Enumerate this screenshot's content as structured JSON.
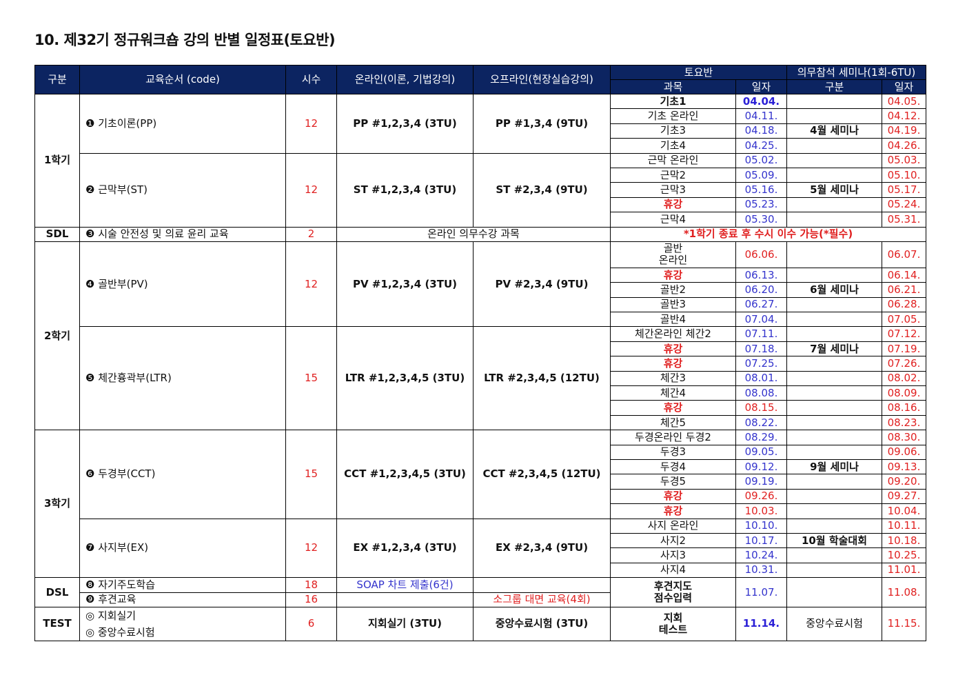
{
  "title": "10. 제32기 정규워크숍 강의 반별 일정표(토요반)",
  "header": {
    "gubun": "구분",
    "order": "교육순서 (code)",
    "hours": "시수",
    "online": "온라인(이론, 기법강의)",
    "offline": "오프라인(현장실습강의)",
    "saturday": "토요반",
    "subject": "과목",
    "date": "일자",
    "seminar": "의무참석 세미나(1회-6TU)",
    "seminar_type": "구분",
    "seminar_date": "일자"
  },
  "colors": {
    "header_bg": "#0c2461",
    "date_blue": "#3333cc",
    "red": "#e02020"
  },
  "sections": [
    {
      "label": "1학기",
      "courses": [
        {
          "name": "❶ 기초이론(PP)",
          "hours": "12",
          "online": "PP #1,2,3,4 (3TU)",
          "offline": "PP #1,3,4 (9TU)",
          "sessions": [
            {
              "subject": "기초1",
              "bold": true,
              "date": "04.04.",
              "date_color": "bold-blue",
              "seminar": "",
              "seminar_date": "04.05."
            },
            {
              "subject": "기초 온라인",
              "date": "04.11.",
              "seminar": "",
              "seminar_date": "04.12."
            },
            {
              "subject": "기초3",
              "date": "04.18.",
              "seminar": "4월 세미나",
              "seminar_date": "04.19."
            },
            {
              "subject": "기초4",
              "date": "04.25.",
              "seminar": "",
              "seminar_date": "04.26."
            }
          ]
        },
        {
          "name": "❷ 근막부(ST)",
          "hours": "12",
          "online": "ST #1,2,3,4 (3TU)",
          "offline": "ST #2,3,4 (9TU)",
          "sessions": [
            {
              "subject": "근막 온라인",
              "date": "05.02.",
              "seminar": "",
              "seminar_date": "05.03."
            },
            {
              "subject": "근막2",
              "date": "05.09.",
              "seminar": "",
              "seminar_date": "05.10."
            },
            {
              "subject": "근막3",
              "date": "05.16.",
              "seminar": "5월 세미나",
              "seminar_date": "05.17."
            },
            {
              "subject": "휴강",
              "holiday": true,
              "date": "05.23.",
              "seminar": "",
              "seminar_date": "05.24."
            },
            {
              "subject": "근막4",
              "date": "05.30.",
              "seminar": "",
              "seminar_date": "05.31."
            }
          ]
        }
      ]
    },
    {
      "special": "sdl",
      "label": "SDL",
      "name": "❸ 시술 안전성 및 의료 윤리 교육",
      "hours": "2",
      "online": "온라인 의무수강 과목",
      "note": "*1학기 종료 후 수시 이수 가능(*필수)"
    },
    {
      "label": "2학기",
      "courses": [
        {
          "name": "❹ 골반부(PV)",
          "hours": "12",
          "online": "PV #1,2,3,4 (3TU)",
          "offline": "PV #2,3,4 (9TU)",
          "sessions": [
            {
              "subject": "골반\n온라인",
              "date": "06.06.",
              "date_color": "red",
              "seminar": "",
              "seminar_date": "06.07."
            },
            {
              "subject": "휴강",
              "holiday": true,
              "date": "06.13.",
              "seminar": "",
              "seminar_date": "06.14."
            },
            {
              "subject": "골반2",
              "date": "06.20.",
              "seminar": "6월 세미나",
              "seminar_date": "06.21."
            },
            {
              "subject": "골반3",
              "date": "06.27.",
              "seminar": "",
              "seminar_date": "06.28."
            },
            {
              "subject": "골반4",
              "date": "07.04.",
              "seminar": "",
              "seminar_date": "07.05."
            }
          ]
        },
        {
          "name": "❺ 체간흉곽부(LTR)",
          "hours": "15",
          "online": "LTR #1,2,3,4,5 (3TU)",
          "offline": "LTR #2,3,4,5 (12TU)",
          "sessions": [
            {
              "subject": "체간온라인 체간2",
              "date": "07.11.",
              "seminar": "",
              "seminar_date": "07.12."
            },
            {
              "subject": "휴강",
              "holiday": true,
              "date": "07.18.",
              "seminar": "7월 세미나",
              "seminar_date": "07.19."
            },
            {
              "subject": "휴강",
              "holiday": true,
              "date": "07.25.",
              "seminar": "",
              "seminar_date": "07.26."
            },
            {
              "subject": "체간3",
              "date": "08.01.",
              "seminar": "",
              "seminar_date": "08.02."
            },
            {
              "subject": "체간4",
              "date": "08.08.",
              "seminar": "",
              "seminar_date": "08.09."
            },
            {
              "subject": "휴강",
              "holiday": true,
              "date": "08.15.",
              "date_color": "red",
              "seminar": "",
              "seminar_date": "08.16."
            },
            {
              "subject": "체간5",
              "date": "08.22.",
              "seminar": "",
              "seminar_date": "08.23."
            }
          ]
        }
      ]
    },
    {
      "label": "3학기",
      "courses": [
        {
          "name": "❻ 두경부(CCT)",
          "hours": "15",
          "online": "CCT #1,2,3,4,5 (3TU)",
          "offline": "CCT #2,3,4,5 (12TU)",
          "sessions": [
            {
              "subject": "두경온라인 두경2",
              "date": "08.29.",
              "seminar": "",
              "seminar_date": "08.30."
            },
            {
              "subject": "두경3",
              "date": "09.05.",
              "seminar": "",
              "seminar_date": "09.06."
            },
            {
              "subject": "두경4",
              "date": "09.12.",
              "seminar": "9월 세미나",
              "seminar_date": "09.13."
            },
            {
              "subject": "두경5",
              "date": "09.19.",
              "seminar": "",
              "seminar_date": "09.20."
            },
            {
              "subject": "휴강",
              "holiday": true,
              "date": "09.26.",
              "date_color": "red",
              "seminar": "",
              "seminar_date": "09.27."
            },
            {
              "subject": "휴강",
              "holiday": true,
              "date": "10.03.",
              "date_color": "red",
              "seminar": "",
              "seminar_date": "10.04."
            }
          ]
        },
        {
          "name": "❼ 사지부(EX)",
          "hours": "12",
          "online": "EX #1,2,3,4 (3TU)",
          "offline": "EX #2,3,4 (9TU)",
          "sessions": [
            {
              "subject": "사지 온라인",
              "date": "10.10.",
              "seminar": "",
              "seminar_date": "10.11."
            },
            {
              "subject": "사지2",
              "date": "10.17.",
              "seminar": "10월 학술대회",
              "seminar_date": "10.18."
            },
            {
              "subject": "사지3",
              "date": "10.24.",
              "seminar": "",
              "seminar_date": "10.25."
            },
            {
              "subject": "사지4",
              "date": "10.31.",
              "seminar": "",
              "seminar_date": "11.01."
            }
          ]
        }
      ]
    },
    {
      "special": "dsl",
      "label": "DSL",
      "rows": [
        {
          "name": "❽ 자기주도학습",
          "hours": "18",
          "online": "SOAP 차트 제출(6건)",
          "offline": ""
        },
        {
          "name": "❾ 후견교육",
          "hours": "16",
          "online": "",
          "offline": "소그룹 대면 교육(4회)"
        }
      ],
      "subject": "후견지도\n점수입력",
      "date": "11.07.",
      "seminar": "",
      "seminar_date": "11.08."
    },
    {
      "special": "test",
      "label": "TEST",
      "name": "◎ 지회실기\n◎ 중앙수료시험",
      "hours": "6",
      "online": "지회실기 (3TU)",
      "offline": "중앙수료시험 (3TU)",
      "subject": "지회\n테스트",
      "date": "11.14.",
      "seminar": "중앙수료시험",
      "seminar_date": "11.15."
    }
  ]
}
